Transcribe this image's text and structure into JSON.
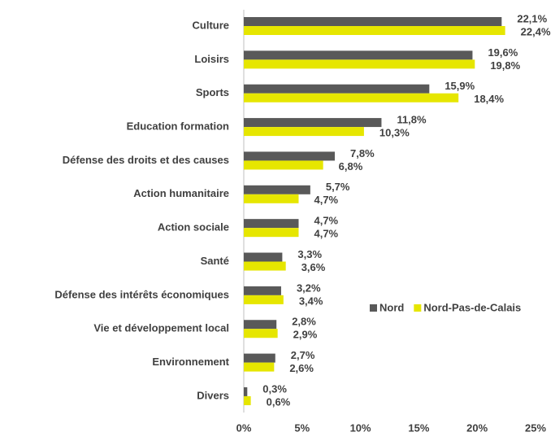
{
  "chart_data": {
    "type": "barh",
    "categories": [
      "Culture",
      "Loisirs",
      "Sports",
      "Education formation",
      "Défense des droits et des causes",
      "Action humanitaire",
      "Action sociale",
      "Santé",
      "Défense des intérêts économiques",
      "Vie et développement local",
      "Environnement",
      "Divers"
    ],
    "series": [
      {
        "name": "Nord",
        "color": "#595959",
        "values": [
          22.1,
          19.6,
          15.9,
          11.8,
          7.8,
          5.7,
          4.7,
          3.3,
          3.2,
          2.8,
          2.7,
          0.3
        ],
        "value_labels": [
          "22,1%",
          "19,6%",
          "15,9%",
          "11,8%",
          "7,8%",
          "5,7%",
          "4,7%",
          "3,3%",
          "3,2%",
          "2,8%",
          "2,7%",
          "0,3%"
        ]
      },
      {
        "name": "Nord-Pas-de-Calais",
        "color": "#e6e600",
        "values": [
          22.4,
          19.8,
          18.4,
          10.3,
          6.8,
          4.7,
          4.7,
          3.6,
          3.4,
          2.9,
          2.6,
          0.6
        ],
        "value_labels": [
          "22,4%",
          "19,8%",
          "18,4%",
          "10,3%",
          "6,8%",
          "4,7%",
          "4,7%",
          "3,6%",
          "3,4%",
          "2,9%",
          "2,6%",
          "0,6%"
        ]
      }
    ],
    "xlim": [
      0,
      25
    ],
    "xticks": [
      {
        "value": 0,
        "label": "0%"
      },
      {
        "value": 5,
        "label": "5%"
      },
      {
        "value": 10,
        "label": "10%"
      },
      {
        "value": 15,
        "label": "15%"
      },
      {
        "value": 20,
        "label": "20%"
      },
      {
        "value": 25,
        "label": "25%"
      }
    ],
    "grid": false,
    "legend": "right"
  }
}
